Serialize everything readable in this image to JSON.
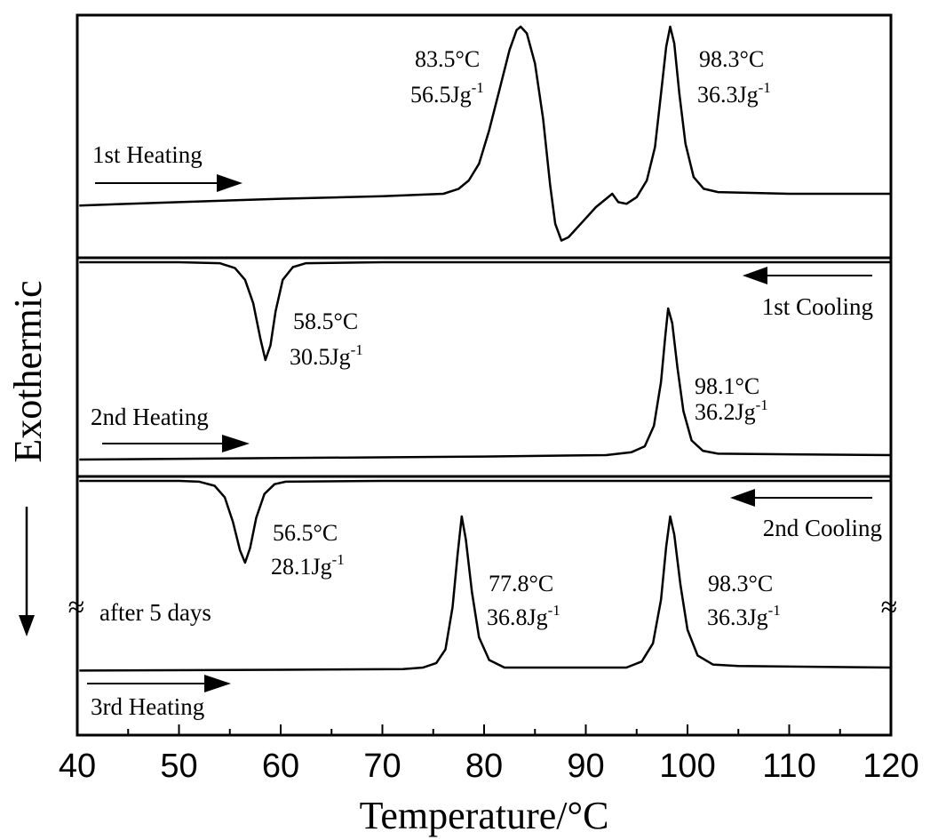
{
  "chart_data": {
    "type": "line",
    "xlabel": "Temperature/°C",
    "ylabel": "Exothermic",
    "xlim": [
      40,
      120
    ],
    "xticks": [
      "40",
      "50",
      "60",
      "70",
      "80",
      "90",
      "100",
      "110",
      "120"
    ],
    "grid": false,
    "colors": {
      "line": "#000000",
      "background": "#ffffff"
    },
    "series": [
      {
        "name": "1st Heating",
        "points": [
          [
            40.2,
            -0.07
          ],
          [
            50,
            -0.05
          ],
          [
            60,
            -0.03
          ],
          [
            70,
            -0.015
          ],
          [
            76,
            0.0
          ],
          [
            77.5,
            0.03
          ],
          [
            78.5,
            0.08
          ],
          [
            79.5,
            0.18
          ],
          [
            80.5,
            0.38
          ],
          [
            81.5,
            0.62
          ],
          [
            82.5,
            0.86
          ],
          [
            83.2,
            0.98
          ],
          [
            83.6,
            1.0
          ],
          [
            84.2,
            0.96
          ],
          [
            85,
            0.78
          ],
          [
            85.8,
            0.45
          ],
          [
            86.5,
            0.05
          ],
          [
            87,
            -0.18
          ],
          [
            87.6,
            -0.28
          ],
          [
            88.3,
            -0.26
          ],
          [
            89.5,
            -0.18
          ],
          [
            91,
            -0.08
          ],
          [
            92,
            -0.03
          ],
          [
            92.6,
            0.0
          ],
          [
            93.2,
            -0.05
          ],
          [
            94,
            -0.06
          ],
          [
            95,
            -0.02
          ],
          [
            96,
            0.08
          ],
          [
            96.8,
            0.28
          ],
          [
            97.4,
            0.6
          ],
          [
            97.9,
            0.88
          ],
          [
            98.3,
            1.0
          ],
          [
            98.7,
            0.9
          ],
          [
            99.2,
            0.6
          ],
          [
            99.8,
            0.3
          ],
          [
            100.6,
            0.1
          ],
          [
            101.6,
            0.03
          ],
          [
            103,
            0.01
          ],
          [
            110,
            0.0
          ],
          [
            120,
            0.0
          ]
        ]
      },
      {
        "name": "1st Cooling",
        "points": [
          [
            40.2,
            0.0
          ],
          [
            50,
            0.0
          ],
          [
            54,
            -0.01
          ],
          [
            55.5,
            -0.06
          ],
          [
            56.5,
            -0.18
          ],
          [
            57.3,
            -0.42
          ],
          [
            58,
            -0.78
          ],
          [
            58.5,
            -1.0
          ],
          [
            59,
            -0.85
          ],
          [
            59.5,
            -0.5
          ],
          [
            60.2,
            -0.18
          ],
          [
            61.2,
            -0.05
          ],
          [
            62.5,
            -0.01
          ],
          [
            70,
            0.0
          ],
          [
            120,
            0.0
          ]
        ]
      },
      {
        "name": "2nd Heating",
        "points": [
          [
            40.2,
            -0.03
          ],
          [
            60,
            -0.02
          ],
          [
            80,
            -0.01
          ],
          [
            92,
            0.0
          ],
          [
            94.5,
            0.02
          ],
          [
            95.8,
            0.06
          ],
          [
            96.7,
            0.2
          ],
          [
            97.4,
            0.5
          ],
          [
            97.8,
            0.8
          ],
          [
            98.1,
            1.0
          ],
          [
            98.5,
            0.9
          ],
          [
            99,
            0.6
          ],
          [
            99.6,
            0.3
          ],
          [
            100.4,
            0.1
          ],
          [
            101.5,
            0.03
          ],
          [
            103,
            0.01
          ],
          [
            120,
            0.0
          ]
        ]
      },
      {
        "name": "2nd Cooling",
        "points": [
          [
            40.2,
            0.0
          ],
          [
            50,
            0.0
          ],
          [
            52,
            -0.01
          ],
          [
            53.5,
            -0.06
          ],
          [
            54.5,
            -0.2
          ],
          [
            55.3,
            -0.5
          ],
          [
            56,
            -0.85
          ],
          [
            56.5,
            -1.0
          ],
          [
            57,
            -0.82
          ],
          [
            57.6,
            -0.45
          ],
          [
            58.4,
            -0.16
          ],
          [
            59.4,
            -0.04
          ],
          [
            60.5,
            -0.01
          ],
          [
            70,
            0.0
          ],
          [
            120,
            0.0
          ]
        ]
      },
      {
        "name": "3rd Heating",
        "points": [
          [
            40.2,
            -0.02
          ],
          [
            60,
            -0.015
          ],
          [
            72,
            -0.01
          ],
          [
            74,
            0.0
          ],
          [
            75.3,
            0.03
          ],
          [
            76.2,
            0.12
          ],
          [
            76.9,
            0.4
          ],
          [
            77.4,
            0.75
          ],
          [
            77.8,
            1.0
          ],
          [
            78.2,
            0.85
          ],
          [
            78.8,
            0.5
          ],
          [
            79.5,
            0.2
          ],
          [
            80.5,
            0.05
          ],
          [
            82,
            0.0
          ],
          [
            94,
            0.0
          ],
          [
            95.5,
            0.04
          ],
          [
            96.6,
            0.16
          ],
          [
            97.4,
            0.45
          ],
          [
            97.9,
            0.8
          ],
          [
            98.3,
            1.0
          ],
          [
            98.7,
            0.88
          ],
          [
            99.3,
            0.55
          ],
          [
            100,
            0.25
          ],
          [
            101,
            0.08
          ],
          [
            102.5,
            0.02
          ],
          [
            105,
            0.01
          ],
          [
            120,
            0.0
          ]
        ]
      }
    ],
    "annotations": [
      {
        "temp": "83.5°C",
        "enthalpy": "56.5Jg",
        "exp": "-1"
      },
      {
        "temp": "98.3°C",
        "enthalpy": "36.3Jg",
        "exp": "-1"
      },
      {
        "temp": "58.5°C",
        "enthalpy": "30.5Jg",
        "exp": "-1"
      },
      {
        "temp": "98.1°C",
        "enthalpy": "36.2Jg",
        "exp": "-1"
      },
      {
        "temp": "56.5°C",
        "enthalpy": "28.1Jg",
        "exp": "-1"
      },
      {
        "temp": "77.8°C",
        "enthalpy": "36.8Jg",
        "exp": "-1"
      },
      {
        "temp": "98.3°C",
        "enthalpy": "36.3Jg",
        "exp": "-1"
      }
    ],
    "scan_labels": [
      "1st Heating",
      "1st Cooling",
      "2nd Heating",
      "2nd Cooling",
      "3rd Heating"
    ],
    "note": "after 5 days",
    "break_mark": "≈"
  }
}
